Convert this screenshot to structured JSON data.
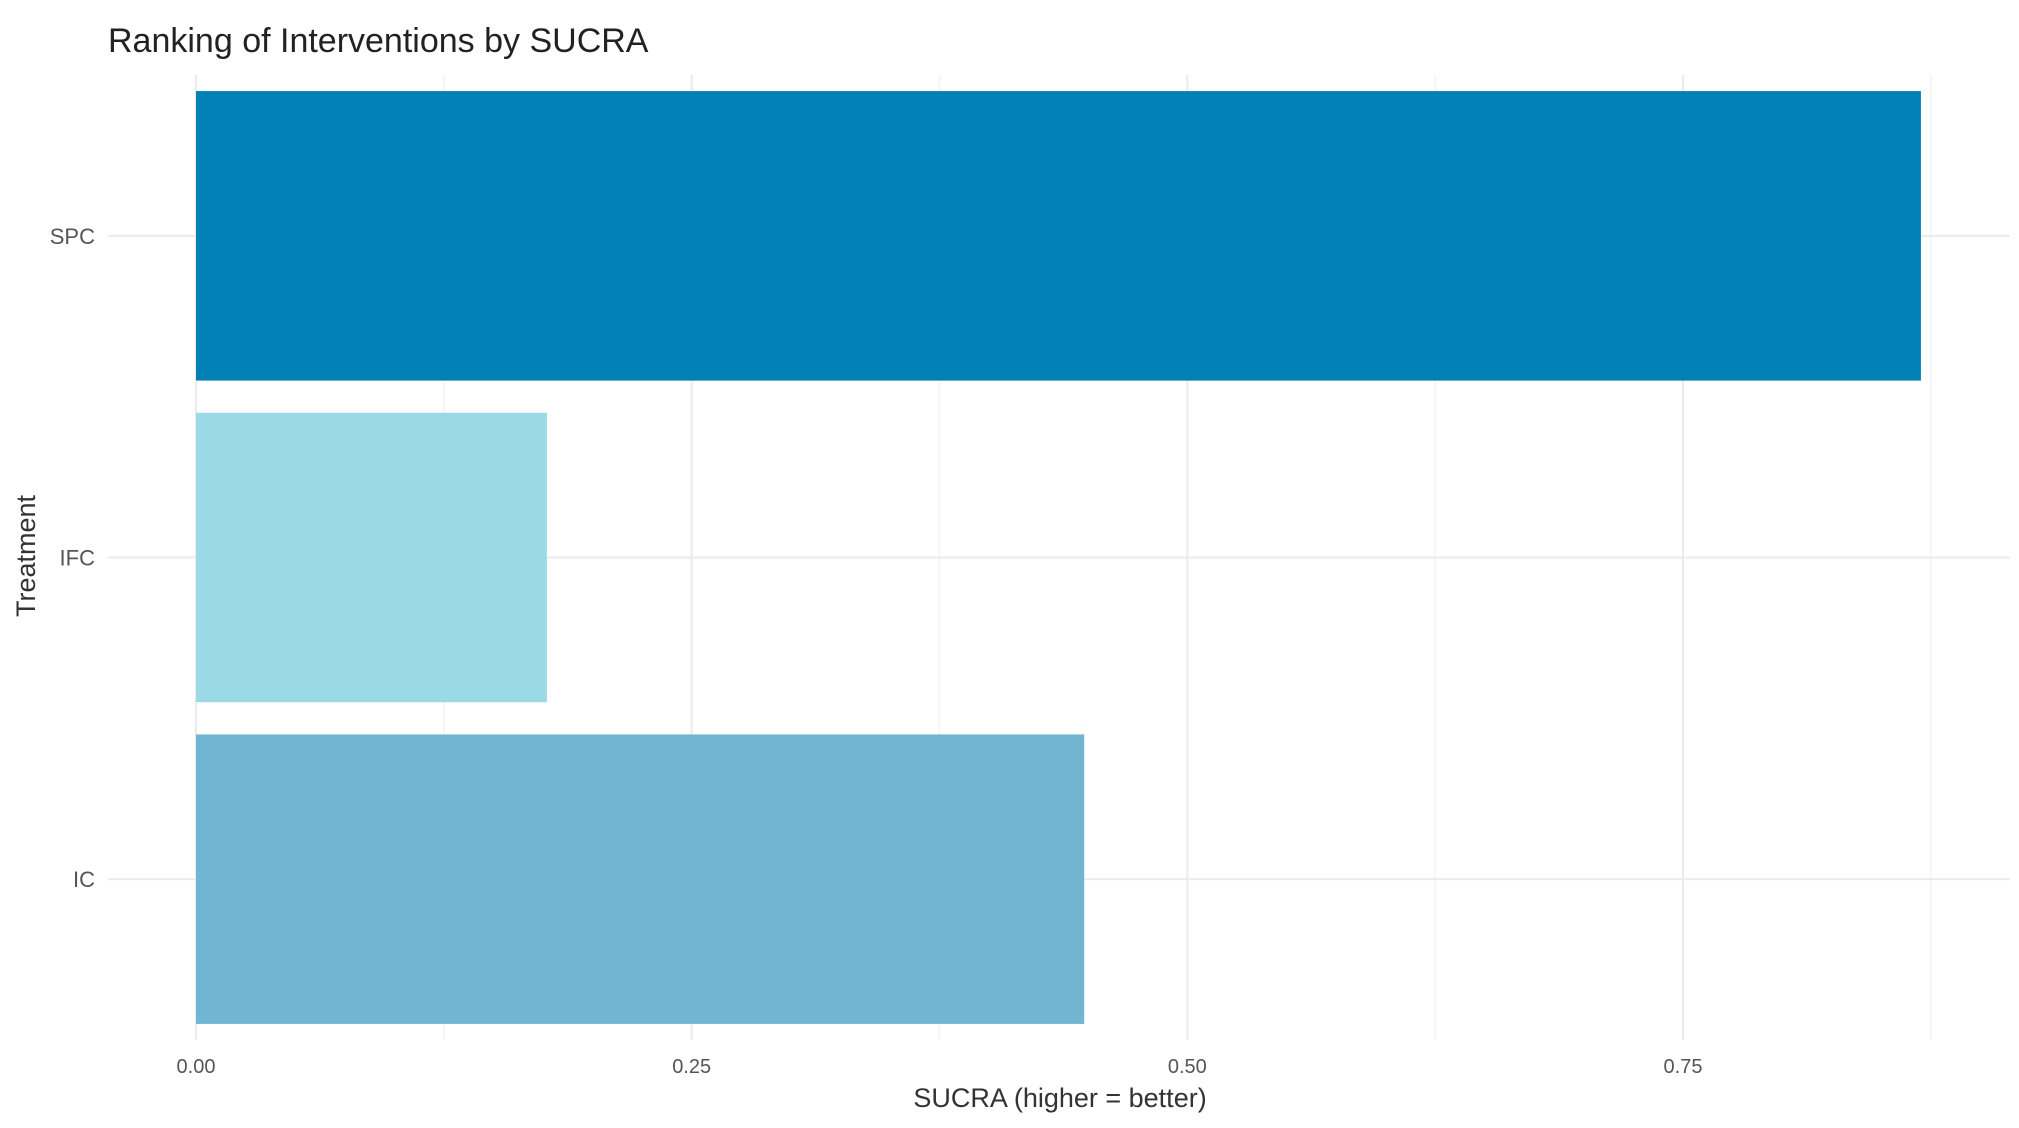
{
  "chart_data": {
    "type": "bar",
    "orientation": "horizontal",
    "title": "Ranking of Interventions by SUCRA",
    "xlabel": "SUCRA (higher = better)",
    "ylabel": "Treatment",
    "categories": [
      "SPC",
      "IFC",
      "IC"
    ],
    "values": [
      0.87,
      0.177,
      0.448
    ],
    "colors": [
      "#0080b4",
      "#9bd9e6",
      "#71b5d3"
    ],
    "xlim": [
      0,
      0.9
    ],
    "xticks": [
      0.0,
      0.25,
      0.5,
      0.75
    ],
    "xtick_labels": [
      "0.00",
      "0.25",
      "0.50",
      "0.75"
    ],
    "grid": true,
    "legend": "none"
  }
}
